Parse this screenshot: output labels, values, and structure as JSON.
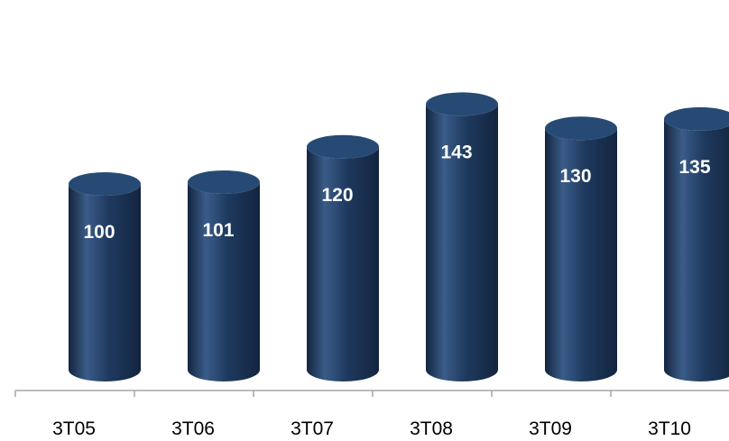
{
  "chart_data": {
    "type": "bar",
    "style": "3d-cylinder",
    "title": "",
    "xlabel": "",
    "ylabel": "",
    "categories": [
      "3T05",
      "3T06",
      "3T07",
      "3T08",
      "3T09",
      "3T10"
    ],
    "values": [
      100,
      101,
      120,
      143,
      130,
      135
    ],
    "data_labels": [
      "100",
      "101",
      "120",
      "143",
      "130",
      "135"
    ],
    "ylim": [
      0,
      155
    ],
    "grid": false,
    "legend": "none",
    "colors": {
      "bar_main": "#1f3a5f",
      "bar_dark": "#13253f",
      "bar_light": "#3a5c88",
      "top_face": "#264a74",
      "axis": "#a6a6a6"
    }
  }
}
